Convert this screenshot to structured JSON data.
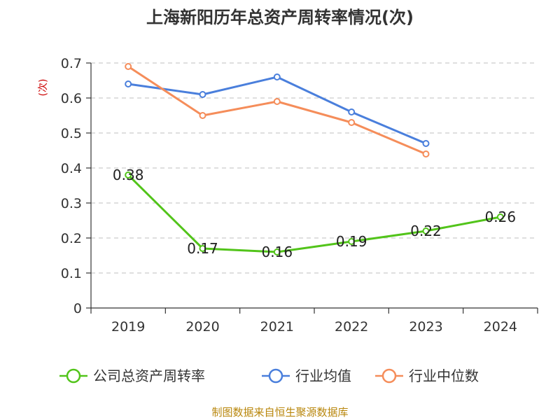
{
  "chart_data": {
    "type": "line",
    "title": "上海新阳历年总资产周转率情况(次)",
    "ylabel": "(次)",
    "xlabel": "",
    "categories": [
      "2019",
      "2020",
      "2021",
      "2022",
      "2023",
      "2024"
    ],
    "ylim": [
      0,
      0.7
    ],
    "yticks": [
      "0",
      "0.1",
      "0.2",
      "0.3",
      "0.4",
      "0.5",
      "0.6",
      "0.7"
    ],
    "grid": true,
    "legend_position": "bottom",
    "series": [
      {
        "name": "公司总资产周转率",
        "color": "#52c41a",
        "values": [
          0.38,
          0.17,
          0.16,
          0.19,
          0.22,
          0.26
        ],
        "data_labels": [
          "0.38",
          "0.17",
          "0.16",
          "0.19",
          "0.22",
          "0.26"
        ]
      },
      {
        "name": "行业均值",
        "color": "#4a7fdc",
        "values": [
          0.64,
          0.61,
          0.66,
          0.56,
          0.47,
          null
        ]
      },
      {
        "name": "行业中位数",
        "color": "#f58d5a",
        "values": [
          0.69,
          0.55,
          0.59,
          0.53,
          0.44,
          null
        ]
      }
    ]
  },
  "source": "制图数据来自恒生聚源数据库"
}
